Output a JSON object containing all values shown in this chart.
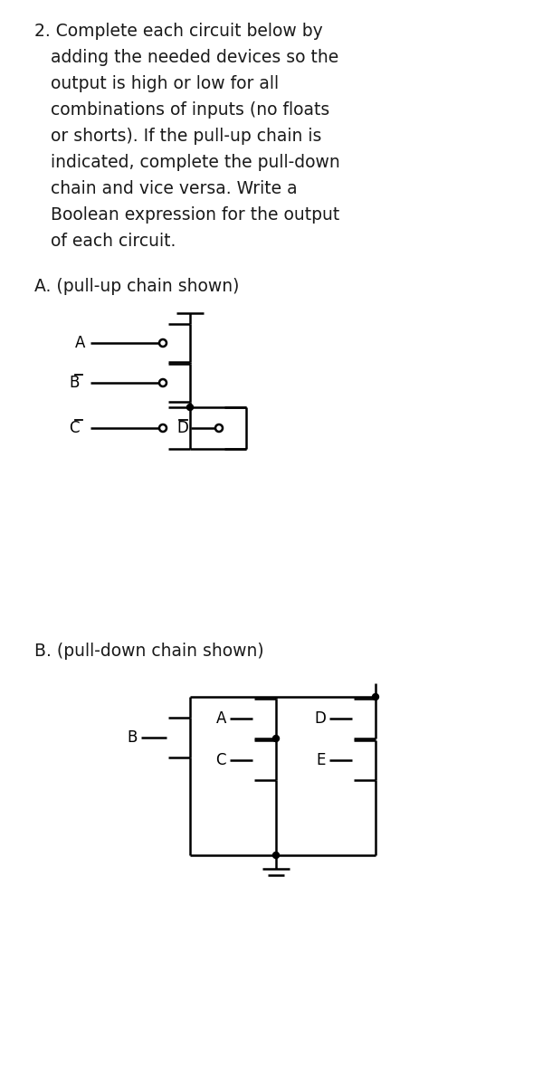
{
  "bg_color": "#ffffff",
  "line_color": "#000000",
  "text_color": "#1a1a1a",
  "font_size_title": 13.5,
  "font_size_section": 13.5,
  "font_size_label": 12,
  "title_lines": [
    "2. Complete each circuit below by",
    "   adding the needed devices so the",
    "   output is high or low for all",
    "   combinations of inputs (no floats",
    "   or shorts). If the pull-up chain is",
    "   indicated, complete the pull-down",
    "   chain and vice versa. Write a",
    "   Boolean expression for the output",
    "   of each circuit."
  ],
  "section_A": "A. (pull-up chain shown)",
  "section_B": "B. (pull-down chain shown)"
}
